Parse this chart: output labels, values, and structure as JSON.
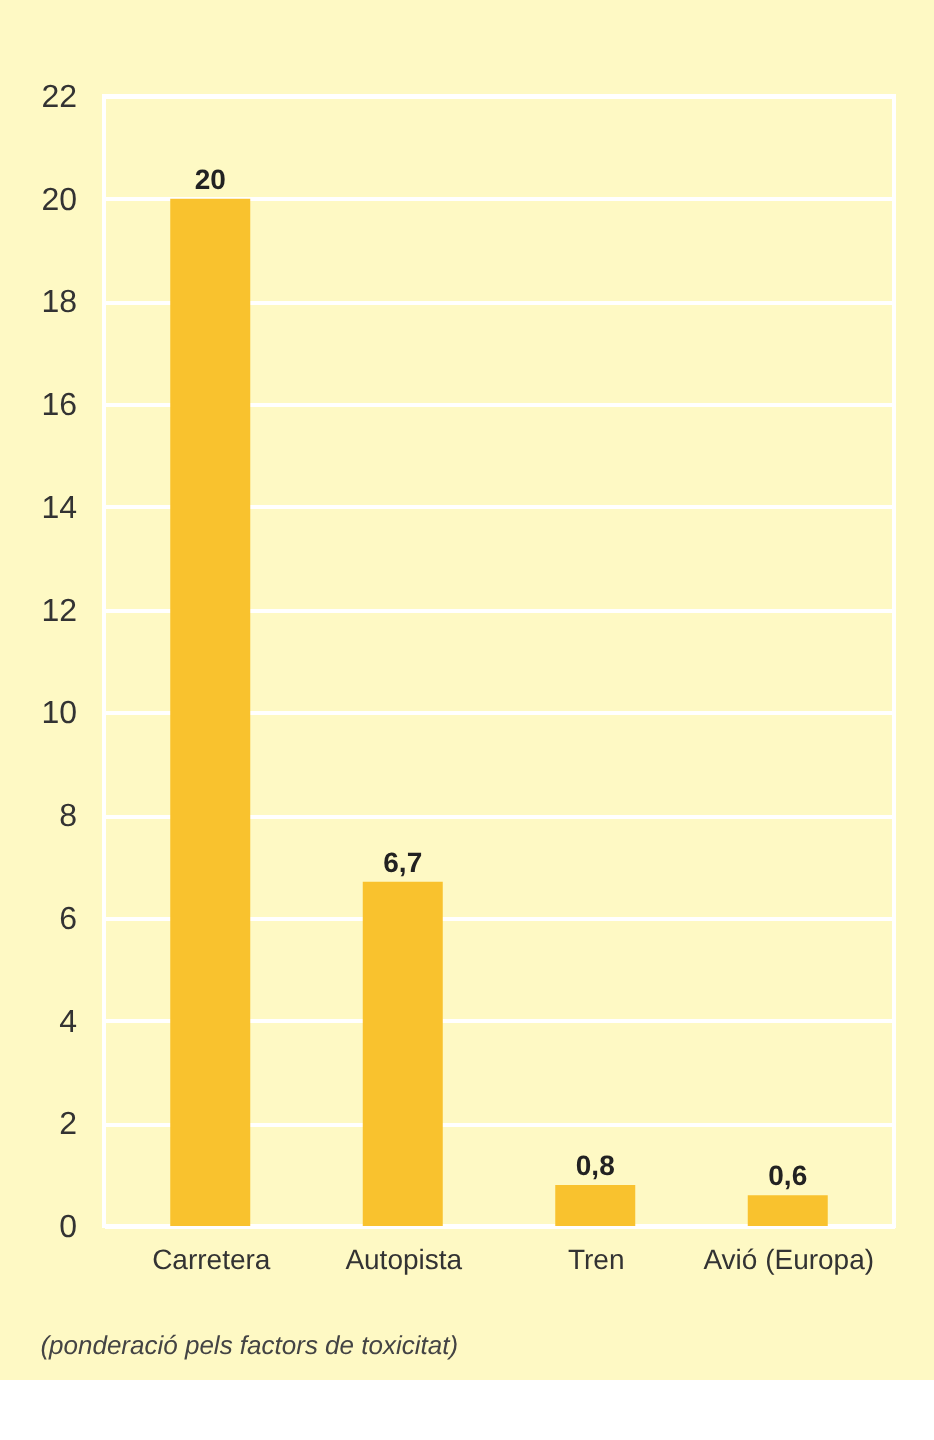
{
  "chart_data": {
    "type": "bar",
    "categories": [
      "Carretera",
      "Autopista",
      "Tren",
      "Avió (Europa)"
    ],
    "values": [
      20,
      6.7,
      0.8,
      0.6
    ],
    "value_labels": [
      "20",
      "6,7",
      "0,8",
      "0,6"
    ],
    "color": "#f9c22e",
    "ylim": [
      0,
      22
    ],
    "yticks": [
      0,
      2,
      4,
      6,
      8,
      10,
      12,
      14,
      16,
      18,
      20,
      22
    ],
    "grid": "y",
    "annotations": [
      "(ponderació pels factors de toxicitat)"
    ]
  }
}
